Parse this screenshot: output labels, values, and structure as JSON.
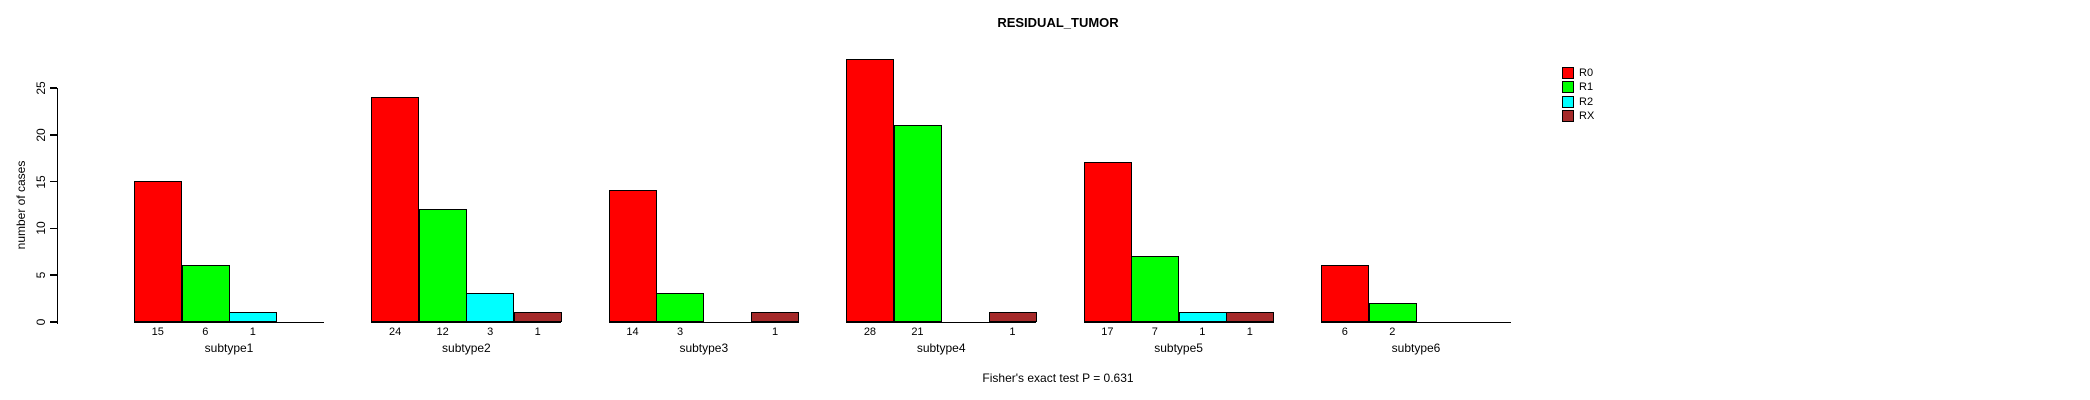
{
  "chart_data": {
    "type": "bar",
    "title": "RESIDUAL_TUMOR",
    "ylabel": "number of cases",
    "xlabel": "",
    "ylim": [
      0,
      25
    ],
    "yticks": [
      0,
      5,
      10,
      15,
      20,
      25
    ],
    "grid": false,
    "legend_position": "top-right",
    "categories": [
      "subtype1",
      "subtype2",
      "subtype3",
      "subtype4",
      "subtype5",
      "subtype6"
    ],
    "series": [
      {
        "name": "R0",
        "color": "#FF0000",
        "values": [
          15,
          24,
          14,
          28,
          17,
          6
        ]
      },
      {
        "name": "R1",
        "color": "#00FF00",
        "values": [
          6,
          12,
          3,
          21,
          7,
          2
        ]
      },
      {
        "name": "R2",
        "color": "#00FFFF",
        "values": [
          1,
          3,
          0,
          0,
          1,
          0
        ]
      },
      {
        "name": "RX",
        "color": "#A52A2A",
        "values": [
          0,
          1,
          1,
          1,
          1,
          0
        ]
      }
    ],
    "bar_value_labels_shown_for_nonzero_bars": true,
    "footnote": "Fisher's exact test P = 0.631",
    "colors": {
      "axis": "#000000",
      "text": "#000000",
      "background": "#FFFFFF"
    }
  }
}
